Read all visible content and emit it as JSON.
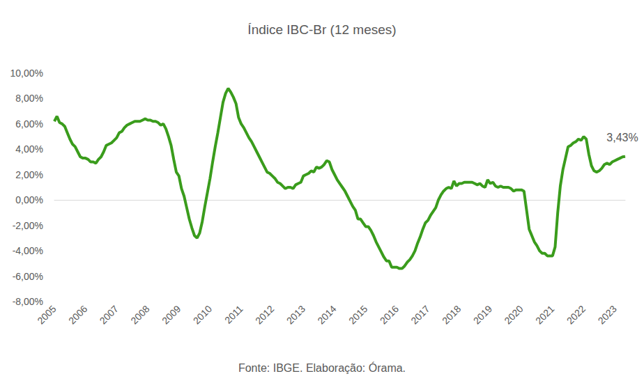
{
  "chart_data": {
    "type": "line",
    "title": "Índice IBC-Br (12 meses)",
    "caption": "Fonte: IBGE. Elaboração: Órama.",
    "color": "#3a9c1c",
    "grid": false,
    "categories": [
      "2005",
      null,
      null,
      null,
      null,
      null,
      null,
      null,
      null,
      null,
      null,
      null,
      "2006",
      null,
      null,
      null,
      null,
      null,
      null,
      null,
      null,
      null,
      null,
      null,
      "2007",
      null,
      null,
      null,
      null,
      null,
      null,
      null,
      null,
      null,
      null,
      null,
      "2008",
      null,
      null,
      null,
      null,
      null,
      null,
      null,
      null,
      null,
      null,
      null,
      "2009",
      null,
      null,
      null,
      null,
      null,
      null,
      null,
      null,
      null,
      null,
      null,
      "2010",
      null,
      null,
      null,
      null,
      null,
      null,
      null,
      null,
      null,
      null,
      null,
      "2011",
      null,
      null,
      null,
      null,
      null,
      null,
      null,
      null,
      null,
      null,
      null,
      "2012",
      null,
      null,
      null,
      null,
      null,
      null,
      null,
      null,
      null,
      null,
      null,
      "2013",
      null,
      null,
      null,
      null,
      null,
      null,
      null,
      null,
      null,
      null,
      null,
      "2014",
      null,
      null,
      null,
      null,
      null,
      null,
      null,
      null,
      null,
      null,
      null,
      "2015",
      null,
      null,
      null,
      null,
      null,
      null,
      null,
      null,
      null,
      null,
      null,
      "2016",
      null,
      null,
      null,
      null,
      null,
      null,
      null,
      null,
      null,
      null,
      null,
      "2017",
      null,
      null,
      null,
      null,
      null,
      null,
      null,
      null,
      null,
      null,
      null,
      "2018",
      null,
      null,
      null,
      null,
      null,
      null,
      null,
      null,
      null,
      null,
      null,
      "2019",
      null,
      null,
      null,
      null,
      null,
      null,
      null,
      null,
      null,
      null,
      null,
      "2020",
      null,
      null,
      null,
      null,
      null,
      null,
      null,
      null,
      null,
      null,
      null,
      "2021",
      null,
      null,
      null,
      null,
      null,
      null,
      null,
      null,
      null,
      null,
      null,
      "2022",
      null,
      null,
      null,
      null,
      null,
      null,
      null,
      null,
      null,
      null,
      null,
      "2023",
      null,
      null,
      null,
      null
    ],
    "values": [
      6.2,
      6.6,
      6.1,
      6.0,
      5.8,
      5.3,
      4.8,
      4.4,
      4.2,
      3.8,
      3.4,
      3.3,
      3.3,
      3.2,
      3.0,
      3.0,
      2.9,
      3.2,
      3.4,
      3.8,
      4.3,
      4.4,
      4.5,
      4.7,
      4.9,
      5.3,
      5.4,
      5.7,
      5.9,
      6.0,
      6.1,
      6.2,
      6.2,
      6.2,
      6.3,
      6.4,
      6.3,
      6.3,
      6.2,
      6.2,
      6.1,
      5.9,
      6.0,
      5.6,
      5.0,
      4.3,
      3.2,
      2.2,
      1.9,
      0.9,
      0.3,
      -0.6,
      -1.5,
      -2.2,
      -2.8,
      -3.0,
      -2.6,
      -1.7,
      -0.5,
      0.6,
      1.7,
      3.0,
      4.2,
      5.3,
      6.5,
      7.7,
      8.4,
      8.8,
      8.5,
      8.1,
      7.6,
      6.5,
      6.0,
      5.7,
      5.3,
      4.9,
      4.6,
      4.2,
      3.8,
      3.4,
      3.0,
      2.6,
      2.2,
      2.1,
      1.9,
      1.7,
      1.4,
      1.3,
      1.1,
      0.9,
      1.0,
      1.0,
      0.9,
      1.2,
      1.3,
      1.4,
      1.9,
      2.0,
      2.1,
      2.3,
      2.2,
      2.6,
      2.5,
      2.6,
      2.8,
      3.1,
      3.0,
      2.4,
      2.0,
      1.6,
      1.3,
      1.0,
      0.7,
      0.3,
      -0.1,
      -0.5,
      -0.8,
      -1.5,
      -1.5,
      -1.8,
      -2.1,
      -2.1,
      -2.4,
      -2.8,
      -3.3,
      -3.7,
      -4.1,
      -4.5,
      -4.8,
      -4.8,
      -5.3,
      -5.3,
      -5.3,
      -5.4,
      -5.4,
      -5.2,
      -4.9,
      -4.7,
      -4.4,
      -4.0,
      -3.4,
      -2.9,
      -2.3,
      -1.8,
      -1.6,
      -1.2,
      -0.9,
      -0.6,
      0.0,
      0.4,
      0.7,
      0.9,
      1.0,
      0.9,
      1.5,
      1.1,
      1.3,
      1.3,
      1.4,
      1.4,
      1.4,
      1.4,
      1.3,
      1.2,
      1.3,
      1.1,
      1.0,
      1.6,
      1.3,
      1.4,
      1.1,
      1.0,
      1.1,
      1.0,
      1.0,
      1.0,
      0.9,
      0.7,
      0.8,
      0.8,
      0.8,
      0.7,
      -0.8,
      -2.3,
      -2.8,
      -3.3,
      -3.6,
      -4.0,
      -4.2,
      -4.2,
      -4.4,
      -4.4,
      -4.4,
      -3.7,
      -1.0,
      1.1,
      2.4,
      3.3,
      4.2,
      4.3,
      4.5,
      4.6,
      4.8,
      4.7,
      5.0,
      4.8,
      3.6,
      2.7,
      2.3,
      2.2,
      2.3,
      2.5,
      2.8,
      2.9,
      2.8,
      3.0,
      3.1,
      3.2,
      3.3,
      3.4,
      3.43
    ],
    "annotations": [
      {
        "text": "3,43%",
        "value": 3.43
      }
    ],
    "ylim": [
      -8,
      10
    ],
    "yticks": [
      {
        "value": -8,
        "label": "-8,00%"
      },
      {
        "value": -6,
        "label": "-6,00%"
      },
      {
        "value": -4,
        "label": "-4,00%"
      },
      {
        "value": -2,
        "label": "-2,00%"
      },
      {
        "value": 0,
        "label": "0,00%"
      },
      {
        "value": 2,
        "label": "2,00%"
      },
      {
        "value": 4,
        "label": "4,00%"
      },
      {
        "value": 6,
        "label": "6,00%"
      },
      {
        "value": 8,
        "label": "8,00%"
      },
      {
        "value": 10,
        "label": "10,00%"
      }
    ]
  }
}
